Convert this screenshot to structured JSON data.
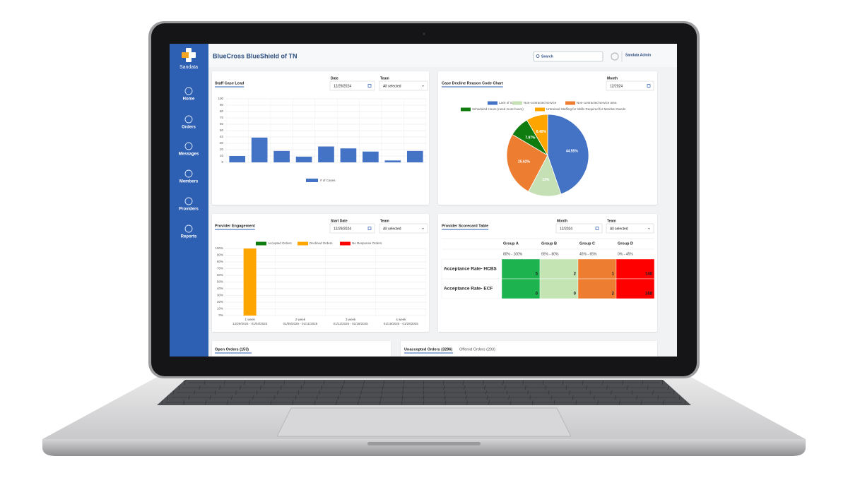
{
  "app": {
    "logo": "Sandata",
    "title": "BlueCross BlueShield of TN",
    "search_placeholder": "Search",
    "user": "Sandata Admin"
  },
  "nav": [
    "Home",
    "Orders",
    "Messages",
    "Members",
    "Providers",
    "Reports"
  ],
  "staff_case_load": {
    "title": "Staff Case Lead",
    "filters": [
      {
        "label": "Date",
        "value": "12/29/2024"
      },
      {
        "label": "Team",
        "value": "All selected"
      }
    ],
    "chart_data": {
      "type": "bar",
      "categories": [
        null,
        null,
        null,
        null,
        null,
        null,
        null,
        null,
        null
      ],
      "series": [
        {
          "name": "# of Cases",
          "color": "#4472c4",
          "values": [
            10,
            39,
            18,
            9,
            25,
            22,
            17,
            3,
            18
          ]
        }
      ],
      "ylim": [
        0,
        100
      ],
      "yticks": [
        0,
        10,
        20,
        30,
        40,
        50,
        60,
        70,
        80,
        90,
        100
      ],
      "grid": true
    }
  },
  "case_decline": {
    "title": "Case Decline Reason Code Chart",
    "filters": [
      {
        "label": "Month",
        "value": "12/2024"
      }
    ],
    "chart_data": {
      "type": "pie",
      "categories": [
        "Lack of Staff",
        "Non-contracted service",
        "Non-contracted service area",
        "Scheduled Hours (need more hours)",
        "Untrained Staffing for Skills Required for Member Needs"
      ],
      "values": [
        44.55,
        13,
        25.62,
        7.97,
        8.46
      ],
      "value_labels": [
        "44.55%",
        "13%",
        "25.62%",
        "7.97%",
        "8.46%"
      ],
      "colors": [
        "#4472c4",
        "#c5e0b4",
        "#ed7d31",
        "#0e7c0e",
        "#ffa500"
      ]
    }
  },
  "provider_engagement": {
    "title": "Provider Engagement",
    "filters": [
      {
        "label": "Start Date",
        "value": "12/29/2024"
      },
      {
        "label": "Team",
        "value": "All selected"
      }
    ],
    "chart_data": {
      "type": "stacked-bar",
      "categories": [
        "1 week",
        "2 week",
        "3 week",
        "4 week"
      ],
      "category_ranges": [
        "12/29/2024 - 01/04/2025",
        "01/05/2025 - 01/11/2025",
        "01/12/2025 - 01/18/2025",
        "01/19/2025 - 01/25/2025"
      ],
      "series": [
        {
          "name": "Accepted Orders",
          "color": "#0e7c0e",
          "values": [
            0,
            0,
            0,
            0
          ]
        },
        {
          "name": "Declined Orders",
          "color": "#ffa500",
          "values": [
            100,
            0,
            0,
            0
          ]
        },
        {
          "name": "No Response Orders",
          "color": "#ff0000",
          "values": [
            0,
            0,
            0,
            0
          ]
        }
      ],
      "ylim": [
        0,
        100
      ],
      "yticks": [
        {
          "value": 0,
          "label": "0%"
        },
        {
          "value": 10,
          "label": "10%"
        },
        {
          "value": 20,
          "label": "20%"
        },
        {
          "value": 30,
          "label": "30%"
        },
        {
          "value": 40,
          "label": "40%"
        },
        {
          "value": 50,
          "label": "50%"
        },
        {
          "value": 60,
          "label": "60%"
        },
        {
          "value": 70,
          "label": "70%"
        },
        {
          "value": 80,
          "label": "80%"
        },
        {
          "value": 90,
          "label": "90%"
        },
        {
          "value": 100,
          "label": "100%"
        }
      ],
      "grid": true
    }
  },
  "scorecard": {
    "title": "Provider Scorecard Table",
    "filters": [
      {
        "label": "Month",
        "value": "12/2024"
      },
      {
        "label": "Team",
        "value": "All selected"
      }
    ],
    "columns": [
      "Group A",
      "Group B",
      "Group C",
      "Group D"
    ],
    "ranges": [
      "80% - 100%",
      "65% - 80%",
      "45% - 65%",
      "0% - 45%"
    ],
    "colors": [
      "#1db34f",
      "#c5e4b3",
      "#ed7d31",
      "#ff0000"
    ],
    "rows": [
      {
        "label": "Acceptance Rate- HCBS",
        "values": [
          5,
          2,
          1,
          148
        ]
      },
      {
        "label": "Acceptance Rate- ECF",
        "values": [
          0,
          0,
          2,
          168
        ]
      }
    ]
  },
  "orders": {
    "open": "Open Orders (153)",
    "tabs": [
      "Unaccepted Orders (3296)",
      "Offered Orders (203)"
    ]
  }
}
